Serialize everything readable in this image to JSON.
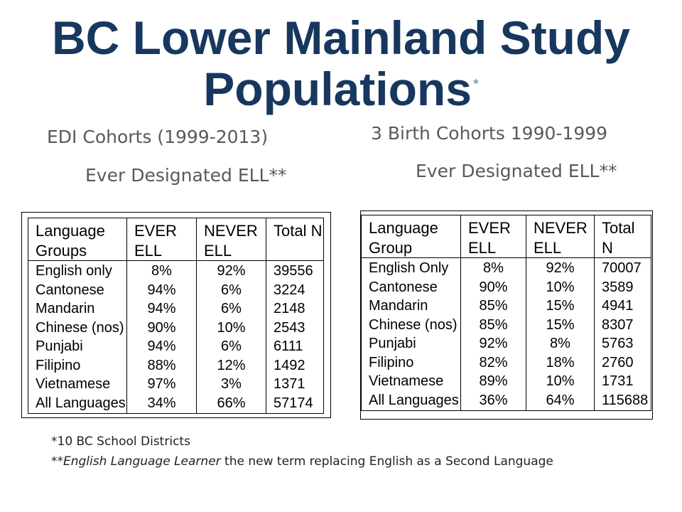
{
  "slide": {
    "title_line1": "BC Lower Mainland Study",
    "title_line2": "Populations",
    "title_mark": "*"
  },
  "left": {
    "heading": "EDI Cohorts (1999-2013)",
    "subheading": "Ever Designated ELL**",
    "table": {
      "headers": [
        [
          "Language",
          "Groups"
        ],
        [
          "EVER",
          "ELL"
        ],
        [
          "NEVER",
          "ELL"
        ],
        [
          "Total N",
          ""
        ]
      ],
      "rows": [
        [
          "English only",
          "8%",
          "92%",
          "39556"
        ],
        [
          "Cantonese",
          "94%",
          "6%",
          "3224"
        ],
        [
          "Mandarin",
          "94%",
          "6%",
          "2148"
        ],
        [
          "Chinese (nos)",
          "90%",
          "10%",
          "2543"
        ],
        [
          "Punjabi",
          "94%",
          "6%",
          "6111"
        ],
        [
          "Filipino",
          "88%",
          "12%",
          "1492"
        ],
        [
          "Vietnamese",
          "97%",
          "3%",
          "1371"
        ],
        [
          "All Languages",
          "34%",
          "66%",
          "57174"
        ]
      ]
    }
  },
  "right": {
    "heading": "3 Birth Cohorts 1990-1999",
    "subheading": "Ever Designated ELL**",
    "table": {
      "headers": [
        [
          "Language",
          "Group"
        ],
        [
          "EVER",
          "ELL"
        ],
        [
          "NEVER",
          "ELL"
        ],
        [
          "Total",
          "N"
        ]
      ],
      "rows": [
        [
          "English Only",
          "8%",
          "92%",
          "70007"
        ],
        [
          "Cantonese",
          "90%",
          "10%",
          "3589"
        ],
        [
          "Mandarin",
          "85%",
          "15%",
          "4941"
        ],
        [
          "Chinese (nos)",
          "85%",
          "15%",
          "8307"
        ],
        [
          "Punjabi",
          "92%",
          "8%",
          "5763"
        ],
        [
          "Filipino",
          "82%",
          "18%",
          "2760"
        ],
        [
          "Vietnamese",
          "89%",
          "10%",
          "1731"
        ],
        [
          "All Languages",
          "36%",
          "64%",
          "115688"
        ]
      ]
    }
  },
  "footnotes": {
    "note1": "*10 BC School Districts",
    "note2_prefix": "**",
    "note2_term": "English Language Learner",
    "note2_rest": " the new term replacing English as a Second Language"
  }
}
